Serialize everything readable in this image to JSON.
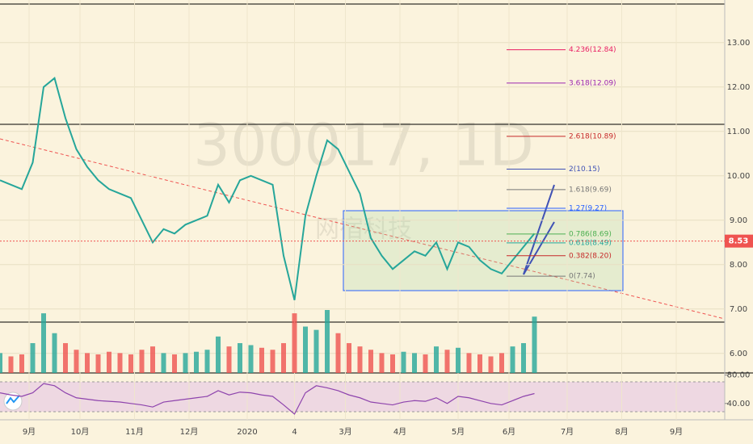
{
  "chart_data": {
    "type": "line",
    "watermark": "300017, 1D",
    "watermark_sub": "网宿科技",
    "xlim": [
      0,
      200
    ],
    "xticks": [
      {
        "value": 8,
        "label": "9月"
      },
      {
        "value": 22,
        "label": "10月"
      },
      {
        "value": 37,
        "label": "11月"
      },
      {
        "value": 52,
        "label": "12月"
      },
      {
        "value": 68,
        "label": "2020"
      },
      {
        "value": 81,
        "label": "4"
      },
      {
        "value": 95,
        "label": "3月"
      },
      {
        "value": 110,
        "label": "4月"
      },
      {
        "value": 126,
        "label": "5月"
      },
      {
        "value": 140,
        "label": "6月"
      },
      {
        "value": 156,
        "label": "7月"
      },
      {
        "value": 171,
        "label": "8月"
      },
      {
        "value": 186,
        "label": "9月"
      }
    ],
    "ylim": [
      5.56,
      13.96
    ],
    "yticks": [
      {
        "value": 6,
        "label": "6.00"
      },
      {
        "value": 7,
        "label": "7.00"
      },
      {
        "value": 8,
        "label": "8.00"
      },
      {
        "value": 9,
        "label": "9.00"
      },
      {
        "value": 10,
        "label": "10.00"
      },
      {
        "value": 11,
        "label": "11.00"
      },
      {
        "value": 12,
        "label": "12.00"
      },
      {
        "value": 13,
        "label": "13.00"
      }
    ],
    "x": [
      0,
      3,
      6,
      9,
      12,
      15,
      18,
      21,
      24,
      27,
      30,
      33,
      36,
      39,
      42,
      45,
      48,
      51,
      54,
      57,
      60,
      63,
      66,
      69,
      72,
      75,
      78,
      81,
      84,
      87,
      90,
      93,
      96,
      99,
      102,
      105,
      108,
      111,
      114,
      117,
      120,
      123,
      126,
      129,
      132,
      135,
      138,
      141,
      144,
      147
    ],
    "price": {
      "color": "#26a69a",
      "values": [
        9.9,
        9.8,
        9.7,
        10.3,
        12.0,
        12.2,
        11.3,
        10.6,
        10.2,
        9.9,
        9.7,
        9.6,
        9.5,
        9.0,
        8.5,
        8.8,
        8.7,
        8.9,
        9.0,
        9.1,
        9.8,
        9.4,
        9.9,
        10.0,
        9.9,
        9.8,
        8.2,
        7.2,
        9.1,
        10.0,
        10.8,
        10.6,
        10.1,
        9.6,
        8.6,
        8.2,
        7.9,
        8.1,
        8.3,
        8.2,
        8.5,
        7.9,
        8.5,
        8.4,
        8.1,
        7.9,
        7.8,
        8.1,
        8.4,
        8.7
      ]
    },
    "last_price": {
      "value": 8.53,
      "label": "8.53",
      "color": "#ef5350"
    },
    "volume": {
      "up_color": "#26a69a",
      "down_color": "#ef5350",
      "values": [
        30,
        25,
        28,
        45,
        90,
        60,
        45,
        35,
        30,
        28,
        32,
        30,
        28,
        35,
        40,
        30,
        28,
        30,
        32,
        35,
        55,
        40,
        45,
        42,
        38,
        35,
        45,
        90,
        70,
        65,
        95,
        60,
        45,
        40,
        35,
        30,
        28,
        32,
        30,
        28,
        40,
        35,
        38,
        30,
        28,
        25,
        30,
        40,
        45,
        85
      ]
    },
    "fib_levels": [
      {
        "label": "4.236(12.84)",
        "value": 12.84,
        "color": "#e91e63"
      },
      {
        "label": "3.618(12.09)",
        "value": 12.09,
        "color": "#9c27b0"
      },
      {
        "label": "2.618(10.89)",
        "value": 10.89,
        "color": "#c62828"
      },
      {
        "label": "2(10.15)",
        "value": 10.15,
        "color": "#3f51b5"
      },
      {
        "label": "1.618(9.69)",
        "value": 9.69,
        "color": "#777777"
      },
      {
        "label": "1.27(9.27)",
        "value": 9.27,
        "color": "#2962ff"
      },
      {
        "label": "0.786(8.69)",
        "value": 8.69,
        "color": "#4caf50"
      },
      {
        "label": "0.618(8.49)",
        "value": 8.49,
        "color": "#26a69a"
      },
      {
        "label": "0.382(8.20)",
        "value": 8.2,
        "color": "#c62828"
      },
      {
        "label": "0(7.74)",
        "value": 7.74,
        "color": "#777777"
      }
    ],
    "rsi": {
      "color": "#8e44ad",
      "ylim": [
        17,
        83
      ],
      "yticks": [
        {
          "value": 40,
          "label": "40.00"
        },
        {
          "value": 80,
          "label": "80.00"
        }
      ],
      "values": [
        55,
        52,
        50,
        55,
        68,
        65,
        55,
        48,
        46,
        44,
        43,
        42,
        40,
        38,
        35,
        42,
        44,
        46,
        48,
        50,
        58,
        52,
        56,
        55,
        52,
        50,
        38,
        25,
        55,
        65,
        62,
        58,
        52,
        48,
        42,
        40,
        38,
        42,
        44,
        43,
        48,
        40,
        50,
        48,
        44,
        40,
        38,
        44,
        50,
        54
      ]
    }
  }
}
